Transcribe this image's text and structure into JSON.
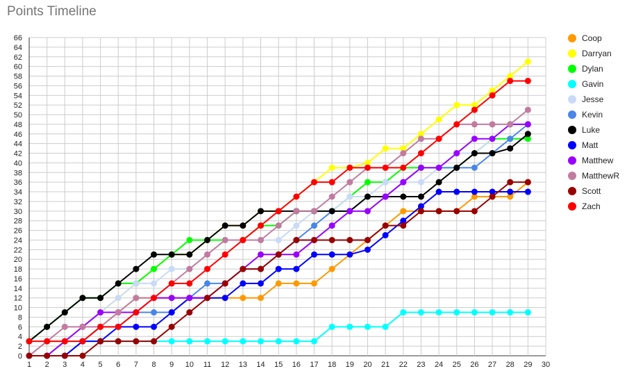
{
  "chart_data": {
    "type": "line",
    "title": "Points Timeline",
    "xlabel": "",
    "ylabel": "",
    "xlim": [
      1,
      30
    ],
    "ylim": [
      0,
      66
    ],
    "x_ticks": [
      1,
      2,
      3,
      4,
      5,
      6,
      7,
      8,
      9,
      10,
      11,
      12,
      13,
      14,
      15,
      16,
      17,
      18,
      19,
      20,
      21,
      22,
      23,
      24,
      25,
      26,
      27,
      28,
      29,
      30
    ],
    "y_ticks": [
      0,
      2,
      4,
      6,
      8,
      10,
      12,
      14,
      16,
      18,
      20,
      22,
      24,
      26,
      28,
      30,
      32,
      34,
      36,
      38,
      40,
      42,
      44,
      46,
      48,
      50,
      52,
      54,
      56,
      58,
      60,
      62,
      64,
      66
    ],
    "grid": true,
    "legend_position": "right",
    "x": [
      1,
      2,
      3,
      4,
      5,
      6,
      7,
      8,
      9,
      10,
      11,
      12,
      13,
      14,
      15,
      16,
      17,
      18,
      19,
      20,
      21,
      22,
      23,
      24,
      25,
      26,
      27,
      28,
      29
    ],
    "series": [
      {
        "name": "Coop",
        "color": "#ff9900",
        "values": [
          0,
          3,
          3,
          3,
          6,
          9,
          12,
          12,
          12,
          12,
          12,
          12,
          12,
          12,
          15,
          15,
          15,
          18,
          21,
          24,
          27,
          30,
          30,
          30,
          30,
          33,
          33,
          33,
          36
        ]
      },
      {
        "name": "Darryan",
        "color": "#ffff00",
        "values": [
          0,
          0,
          3,
          6,
          9,
          12,
          15,
          18,
          21,
          21,
          24,
          27,
          27,
          30,
          30,
          33,
          36,
          39,
          39,
          40,
          43,
          43,
          46,
          49,
          52,
          52,
          55,
          58,
          61
        ]
      },
      {
        "name": "Dylan",
        "color": "#00ff00",
        "values": [
          3,
          6,
          9,
          12,
          12,
          15,
          15,
          18,
          21,
          24,
          24,
          24,
          24,
          27,
          27,
          30,
          30,
          30,
          33,
          36,
          36,
          39,
          39,
          39,
          39,
          42,
          45,
          45,
          45
        ]
      },
      {
        "name": "Gavin",
        "color": "#00ffff",
        "values": [
          0,
          0,
          3,
          3,
          3,
          3,
          3,
          3,
          3,
          3,
          3,
          3,
          3,
          3,
          3,
          3,
          3,
          6,
          6,
          6,
          6,
          9,
          9,
          9,
          9,
          9,
          9,
          9,
          9
        ]
      },
      {
        "name": "Jesse",
        "color": "#c9daf8",
        "values": [
          0,
          3,
          3,
          6,
          9,
          12,
          15,
          15,
          18,
          18,
          21,
          24,
          24,
          24,
          24,
          27,
          30,
          30,
          33,
          33,
          36,
          36,
          36,
          39,
          42,
          42,
          45,
          48,
          48
        ]
      },
      {
        "name": "Kevin",
        "color": "#4a86e8",
        "values": [
          0,
          0,
          0,
          3,
          6,
          6,
          9,
          9,
          9,
          12,
          15,
          15,
          18,
          18,
          21,
          24,
          27,
          30,
          30,
          33,
          33,
          36,
          39,
          39,
          39,
          39,
          42,
          45,
          48
        ]
      },
      {
        "name": "Luke",
        "color": "#000000",
        "values": [
          3,
          6,
          9,
          12,
          12,
          15,
          18,
          21,
          21,
          21,
          24,
          27,
          27,
          30,
          30,
          30,
          30,
          30,
          30,
          33,
          33,
          33,
          33,
          36,
          39,
          42,
          42,
          43,
          46
        ]
      },
      {
        "name": "Matt",
        "color": "#0000ff",
        "values": [
          0,
          0,
          0,
          3,
          3,
          6,
          6,
          6,
          9,
          12,
          12,
          12,
          15,
          15,
          18,
          18,
          21,
          21,
          21,
          22,
          25,
          28,
          31,
          34,
          34,
          34,
          34,
          34,
          34
        ]
      },
      {
        "name": "Matthew",
        "color": "#9900ff",
        "values": [
          0,
          0,
          3,
          6,
          9,
          9,
          9,
          12,
          12,
          12,
          12,
          15,
          18,
          21,
          21,
          21,
          24,
          27,
          30,
          30,
          33,
          36,
          39,
          39,
          42,
          45,
          45,
          48,
          48
        ]
      },
      {
        "name": "MatthewR",
        "color": "#c27ba0",
        "values": [
          0,
          3,
          6,
          6,
          6,
          9,
          12,
          12,
          15,
          18,
          21,
          24,
          24,
          24,
          27,
          30,
          30,
          33,
          36,
          39,
          39,
          42,
          45,
          45,
          48,
          48,
          48,
          48,
          51
        ]
      },
      {
        "name": "Scott",
        "color": "#990000",
        "values": [
          0,
          0,
          0,
          0,
          3,
          3,
          3,
          3,
          6,
          9,
          12,
          15,
          18,
          18,
          21,
          24,
          24,
          24,
          24,
          24,
          27,
          27,
          30,
          30,
          30,
          30,
          33,
          36,
          36
        ]
      },
      {
        "name": "Zach",
        "color": "#ff0000",
        "values": [
          3,
          3,
          3,
          3,
          6,
          6,
          9,
          12,
          15,
          15,
          18,
          21,
          24,
          27,
          30,
          33,
          36,
          36,
          39,
          39,
          39,
          39,
          42,
          45,
          48,
          51,
          54,
          57,
          57
        ]
      }
    ]
  }
}
